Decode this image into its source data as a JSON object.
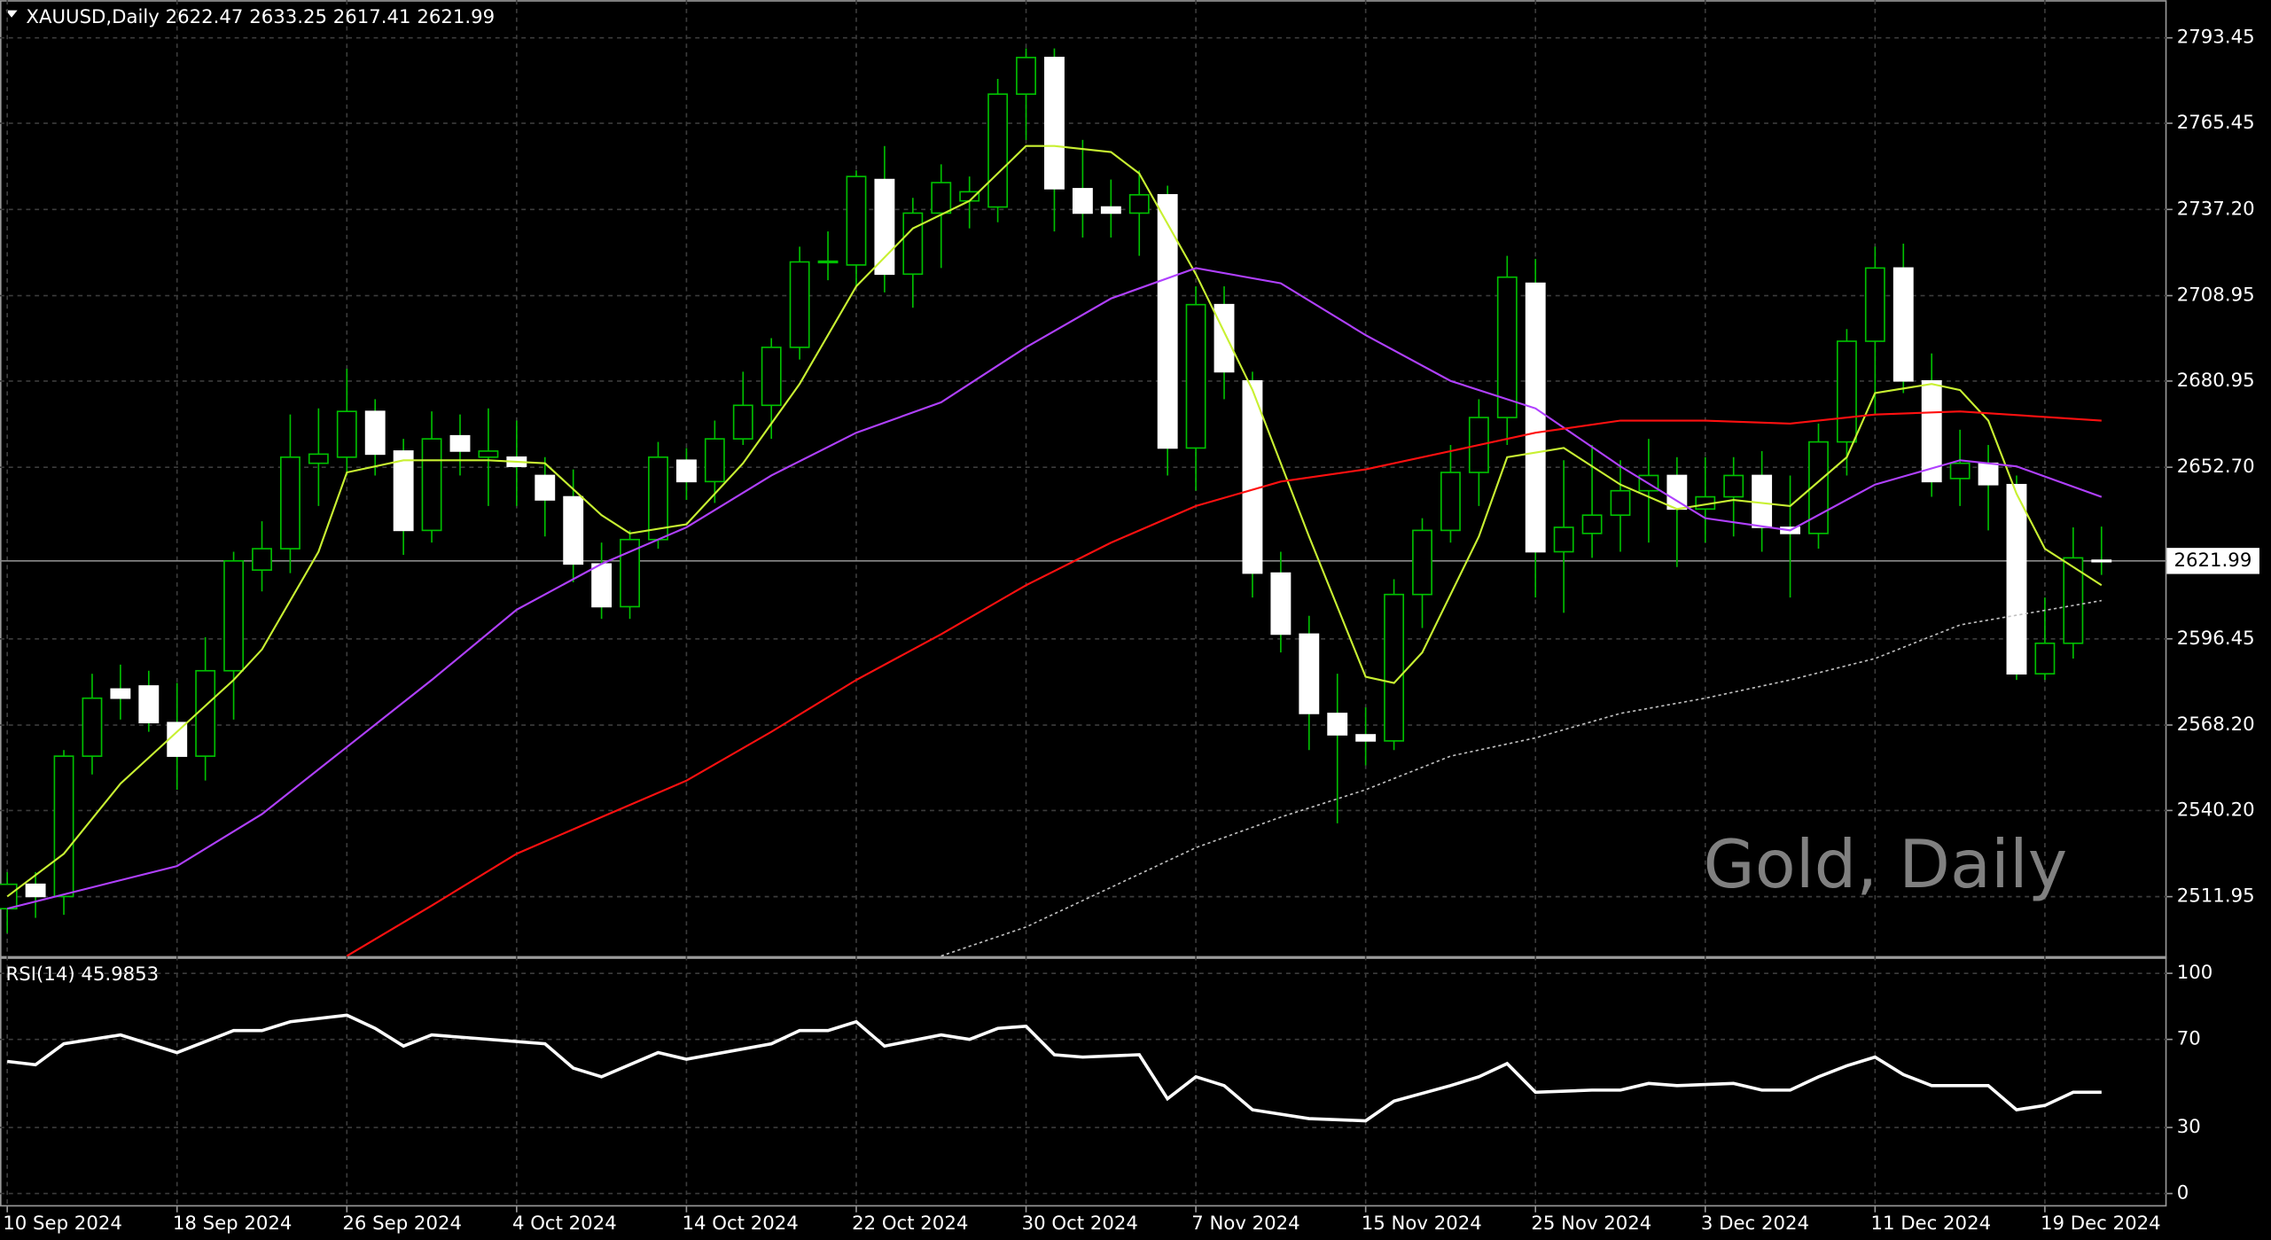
{
  "chart_data": [
    {
      "type": "candlestick",
      "title": "XAUUSD,Daily",
      "watermark": "Gold, Daily",
      "categories": [
        "10 Sep 2024",
        null,
        null,
        null,
        null,
        null,
        "18 Sep 2024",
        null,
        null,
        null,
        null,
        null,
        "26 Sep 2024",
        null,
        null,
        null,
        null,
        null,
        "4 Oct 2024",
        null,
        null,
        null,
        null,
        null,
        "14 Oct 2024",
        null,
        null,
        null,
        null,
        null,
        "22 Oct 2024",
        null,
        null,
        null,
        null,
        null,
        "30 Oct 2024",
        null,
        null,
        null,
        null,
        null,
        "7 Nov 2024",
        null,
        null,
        null,
        null,
        null,
        "15 Nov 2024",
        null,
        null,
        null,
        null,
        null,
        "25 Nov 2024",
        null,
        null,
        null,
        null,
        null,
        "3 Dec 2024",
        null,
        null,
        null,
        null,
        null,
        "11 Dec 2024",
        null,
        null,
        null,
        null,
        null,
        "19 Dec 2024",
        null,
        null
      ],
      "open": [
        2508,
        2516,
        2512,
        2558,
        2580,
        2581,
        2569,
        2558,
        2586,
        2619,
        2626,
        2654,
        2656,
        2671,
        2658,
        2632,
        2663,
        2656,
        2656,
        2650,
        2643,
        2621,
        2607,
        2629,
        2655,
        2648,
        2662,
        2673,
        2692,
        2720,
        2719,
        2747,
        2716,
        2736,
        2740,
        2738,
        2775,
        2787,
        2744,
        2738,
        2736,
        2742,
        2659,
        2706,
        2681,
        2618,
        2598,
        2572,
        2565,
        2563,
        2611,
        2632,
        2651,
        2669,
        2713,
        2625,
        2631,
        2637,
        2645,
        2650,
        2639,
        2643,
        2650,
        2633,
        2631,
        2661,
        2694,
        2718,
        2681,
        2649,
        2654,
        2647,
        2585,
        2595,
        2622.47
      ],
      "high": [
        2520,
        2520,
        2560,
        2585,
        2588,
        2586,
        2582,
        2597,
        2625,
        2635,
        2670,
        2672,
        2685,
        2675,
        2662,
        2671,
        2670,
        2672,
        2668,
        2656,
        2652,
        2628,
        2632,
        2661,
        2659,
        2668,
        2684,
        2695,
        2725,
        2730,
        2750,
        2758,
        2741,
        2752,
        2748,
        2780,
        2790,
        2790,
        2760,
        2747,
        2750,
        2745,
        2712,
        2712,
        2684,
        2625,
        2604,
        2585,
        2574,
        2616,
        2636,
        2660,
        2675,
        2722,
        2721,
        2655,
        2660,
        2655,
        2662,
        2656,
        2656,
        2656,
        2658,
        2650,
        2667,
        2698,
        2725,
        2726,
        2690,
        2665,
        2660,
        2650,
        2610,
        2633,
        2633.25
      ],
      "low": [
        2500,
        2505,
        2506,
        2552,
        2570,
        2566,
        2547,
        2550,
        2570,
        2612,
        2618,
        2640,
        2650,
        2650,
        2624,
        2628,
        2650,
        2640,
        2640,
        2630,
        2615,
        2603,
        2603,
        2626,
        2642,
        2641,
        2660,
        2662,
        2688,
        2714,
        2712,
        2710,
        2705,
        2718,
        2731,
        2733,
        2760,
        2730,
        2728,
        2728,
        2722,
        2650,
        2645,
        2675,
        2610,
        2592,
        2560,
        2536,
        2555,
        2560,
        2600,
        2628,
        2640,
        2660,
        2610,
        2605,
        2623,
        2625,
        2628,
        2620,
        2628,
        2630,
        2625,
        2610,
        2626,
        2650,
        2670,
        2677,
        2643,
        2640,
        2632,
        2583,
        2583,
        2590,
        2617.41
      ],
      "close": [
        2516,
        2512,
        2558,
        2577,
        2577,
        2569,
        2558,
        2586,
        2622,
        2626,
        2656,
        2657,
        2671,
        2657,
        2632,
        2662,
        2658,
        2658,
        2653,
        2642,
        2621,
        2607,
        2629,
        2656,
        2648,
        2662,
        2673,
        2692,
        2720,
        2720,
        2748,
        2716,
        2736,
        2746,
        2743,
        2775,
        2787,
        2744,
        2736,
        2736,
        2742,
        2659,
        2706,
        2684,
        2618,
        2598,
        2572,
        2565,
        2563,
        2611,
        2632,
        2651,
        2669,
        2715,
        2625,
        2633,
        2637,
        2645,
        2650,
        2639,
        2643,
        2650,
        2633,
        2631,
        2661,
        2694,
        2718,
        2681,
        2648,
        2654,
        2647,
        2585,
        2595,
        2623,
        2621.99
      ],
      "bull_color": "#000000",
      "bear_color": "#ffffff",
      "wick_color": "#00c000",
      "ylim": [
        2492.5,
        2805.8
      ],
      "yticks": [
        2511.95,
        {
          "value": 2540.2,
          "label": "2540.20"
        },
        {
          "value": 2568.2,
          "label": "2568.20"
        },
        2596.45,
        {
          "value": 2652.7,
          "label": "2652.70"
        },
        2680.95,
        2708.95,
        {
          "value": 2737.2,
          "label": "2737.20"
        },
        2765.45,
        2793.45
      ],
      "grid": true,
      "lines": [
        {
          "color": "#c8f032",
          "dashed": false,
          "x": [
            0,
            2,
            4,
            6,
            8,
            9,
            11,
            12,
            14,
            17,
            19,
            21,
            22,
            24,
            26,
            28,
            30,
            32,
            34,
            36,
            37,
            39,
            40,
            42,
            44,
            46,
            48,
            49,
            50,
            52,
            53,
            55,
            57,
            59,
            61,
            63,
            65,
            66,
            68,
            69,
            70,
            71,
            72,
            74
          ],
          "values": [
            2512,
            2526,
            2549,
            2566,
            2583,
            2593,
            2625,
            2651,
            2655,
            2655,
            2654,
            2637,
            2631,
            2634,
            2654,
            2680,
            2712,
            2731,
            2740,
            2758,
            2758,
            2756,
            2749,
            2716,
            2678,
            2630,
            2584,
            2582,
            2592,
            2630,
            2656,
            2659,
            2647,
            2639,
            2642,
            2640,
            2656,
            2677,
            2680,
            2678,
            2668,
            2644,
            2626,
            2614
          ]
        },
        {
          "color": "#b040ff",
          "dashed": false,
          "x": [
            0,
            3,
            6,
            9,
            12,
            15,
            18,
            21,
            24,
            27,
            30,
            33,
            36,
            39,
            42,
            45,
            48,
            51,
            54,
            57,
            60,
            63,
            66,
            69,
            71,
            74
          ],
          "values": [
            2508,
            2515,
            2522,
            2539,
            2561,
            2583,
            2606,
            2621,
            2633,
            2650,
            2664,
            2674,
            2692,
            2708,
            2718,
            2713,
            2696,
            2681,
            2672,
            2653,
            2636,
            2632,
            2647,
            2655,
            2653,
            2643
          ]
        },
        {
          "color": "#ff1010",
          "dashed": false,
          "x": [
            12,
            15,
            18,
            21,
            24,
            27,
            30,
            33,
            36,
            39,
            42,
            45,
            48,
            51,
            54,
            57,
            60,
            63,
            66,
            69,
            74
          ],
          "values": [
            2492.5,
            2509,
            2526,
            2538,
            2550,
            2566,
            2583,
            2598,
            2614,
            2628,
            2640,
            2648,
            2652,
            2658,
            2664,
            2668,
            2668,
            2667,
            2670,
            2671,
            2668
          ]
        },
        {
          "color": "#c0c0c0",
          "dashed": true,
          "x": [
            33,
            36,
            39,
            42,
            45,
            48,
            51,
            54,
            57,
            60,
            63,
            66,
            69,
            74
          ],
          "values": [
            2492.5,
            2502,
            2515,
            2528,
            2538,
            2547,
            2558,
            2564,
            2572,
            2577,
            2583,
            2590,
            2601,
            2609
          ]
        }
      ]
    },
    {
      "type": "line",
      "title": "RSI(14)",
      "color": "#ffffff",
      "x": [
        0,
        1,
        2,
        4,
        6,
        8,
        9,
        10,
        12,
        13,
        14,
        15,
        19,
        20,
        21,
        23,
        24,
        27,
        28,
        29,
        30,
        31,
        33,
        34,
        35,
        36,
        37,
        38,
        40,
        41,
        42,
        43,
        44,
        46,
        48,
        49,
        51,
        52,
        53,
        54,
        56,
        57,
        58,
        59,
        61,
        62,
        63,
        64,
        65,
        66,
        67,
        68,
        70,
        71,
        72,
        73,
        74
      ],
      "values": [
        60,
        58.5,
        68,
        72,
        64,
        74,
        74,
        78,
        81,
        75,
        67,
        72,
        68,
        57,
        53,
        64,
        61,
        68,
        74,
        74,
        78,
        67,
        72,
        70,
        75,
        76,
        63,
        62,
        63,
        43,
        53,
        49,
        38,
        34,
        33,
        42,
        49,
        53,
        59,
        46,
        47,
        47,
        50,
        49,
        50,
        47,
        47,
        53,
        58,
        62,
        54,
        49,
        49,
        38,
        40,
        46,
        45.9853
      ],
      "ylim": [
        -5.9,
        105.9
      ],
      "yticks": [
        0,
        30,
        70,
        100
      ],
      "grid": true
    }
  ]
}
